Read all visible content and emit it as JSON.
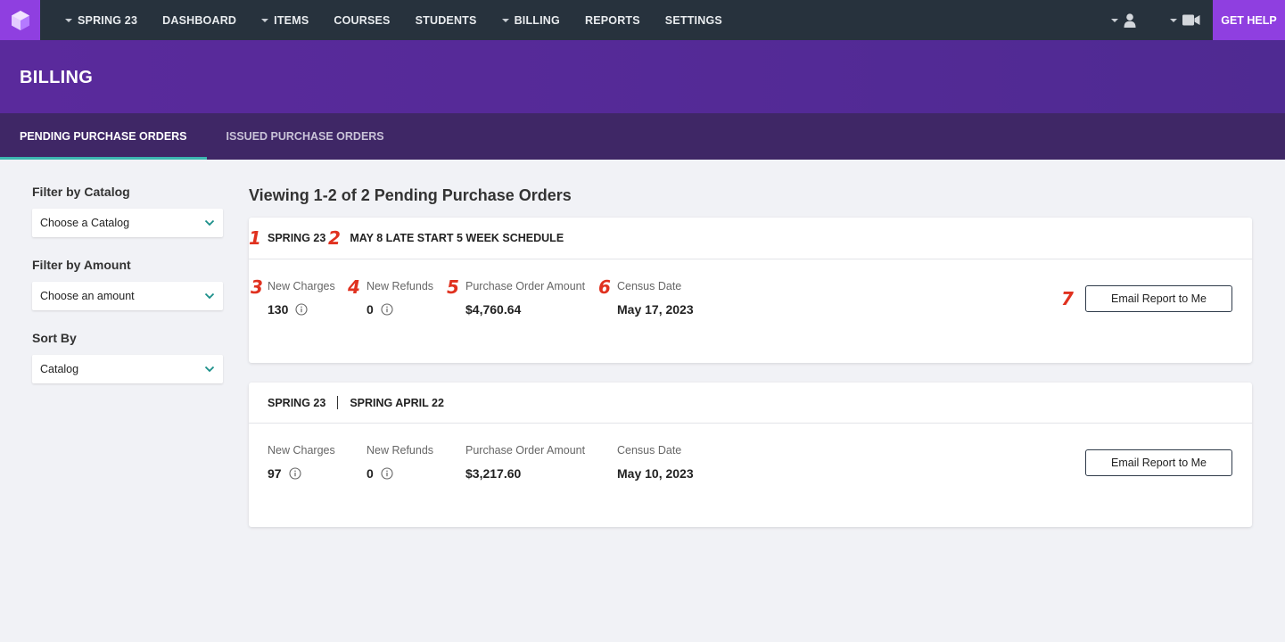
{
  "nav": {
    "items": [
      {
        "label": "SPRING 23",
        "dropdown": true
      },
      {
        "label": "DASHBOARD",
        "dropdown": false
      },
      {
        "label": "ITEMS",
        "dropdown": true
      },
      {
        "label": "COURSES",
        "dropdown": false
      },
      {
        "label": "STUDENTS",
        "dropdown": false
      },
      {
        "label": "BILLING",
        "dropdown": true
      },
      {
        "label": "REPORTS",
        "dropdown": false
      },
      {
        "label": "SETTINGS",
        "dropdown": false
      }
    ],
    "get_help": "GET HELP",
    "icons": [
      "user-icon",
      "video-icon"
    ]
  },
  "header": {
    "title": "BILLING"
  },
  "tabs": [
    {
      "label": "PENDING PURCHASE ORDERS",
      "active": true
    },
    {
      "label": "ISSUED PURCHASE ORDERS",
      "active": false
    }
  ],
  "sidebar": {
    "catalog_label": "Filter by Catalog",
    "catalog_value": "Choose a Catalog",
    "amount_label": "Filter by Amount",
    "amount_value": "Choose an amount",
    "sort_label": "Sort By",
    "sort_value": "Catalog"
  },
  "main": {
    "title": "Viewing 1-2 of 2 Pending Purchase Orders",
    "orders": [
      {
        "term": "SPRING 23",
        "schedule": "MAY 8 LATE START 5 WEEK SCHEDULE",
        "new_charges_label": "New Charges",
        "new_charges": "130",
        "new_refunds_label": "New Refunds",
        "new_refunds": "0",
        "po_amount_label": "Purchase Order Amount",
        "po_amount": "$4,760.64",
        "census_label": "Census Date",
        "census_date": "May 17, 2023",
        "email_button": "Email Report to Me"
      },
      {
        "term": "SPRING 23",
        "schedule": "SPRING APRIL 22",
        "new_charges_label": "New Charges",
        "new_charges": "97",
        "new_refunds_label": "New Refunds",
        "new_refunds": "0",
        "po_amount_label": "Purchase Order Amount",
        "po_amount": "$3,217.60",
        "census_label": "Census Date",
        "census_date": "May 10, 2023",
        "email_button": "Email Report to Me"
      }
    ]
  },
  "annotations": [
    "1",
    "2",
    "3",
    "4",
    "5",
    "6",
    "7"
  ],
  "colors": {
    "nav_bg": "#27323d",
    "brand_purple": "#8f3fe0",
    "header_purple": "#5a2a9c",
    "tabbar_purple": "#3f2766",
    "tab_underline": "#3cb6b0",
    "chevron_teal": "#1a8f89",
    "annotation_red": "#e0311f"
  }
}
